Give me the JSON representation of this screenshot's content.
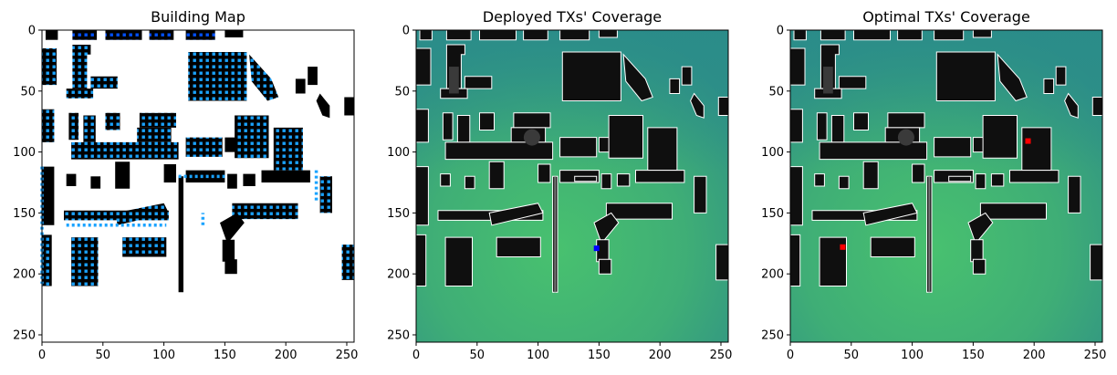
{
  "figure": {
    "panels": [
      {
        "title": "Building Map",
        "type": "map",
        "background": "#ffffff",
        "building_color": "#000000",
        "dot_colors": [
          "#1aa3ff",
          "#0044ff"
        ]
      },
      {
        "title": "Deployed TXs' Coverage",
        "type": "coverage-map",
        "colors": {
          "high": "#45bd6e",
          "mid": "#3aa37e",
          "low": "#2a8e89",
          "building": "#0f0f0f",
          "outline": "#ffffff"
        },
        "tx_markers": [
          {
            "x": 148,
            "y": 179,
            "color": "#0000ff"
          }
        ]
      },
      {
        "title": "Optimal TXs' Coverage",
        "type": "coverage-map",
        "colors": {
          "high": "#45bd6e",
          "mid": "#3aa37e",
          "low": "#2a8e89",
          "building": "#0f0f0f",
          "outline": "#ffffff"
        },
        "tx_markers": [
          {
            "x": 195,
            "y": 91,
            "color": "#ff0000"
          },
          {
            "x": 43,
            "y": 178,
            "color": "#ff0000"
          }
        ]
      }
    ],
    "x_ticks": [
      "0",
      "50",
      "100",
      "150",
      "200",
      "250"
    ],
    "y_ticks": [
      "0",
      "50",
      "100",
      "150",
      "200",
      "250"
    ],
    "axis_range": [
      0,
      256
    ]
  }
}
